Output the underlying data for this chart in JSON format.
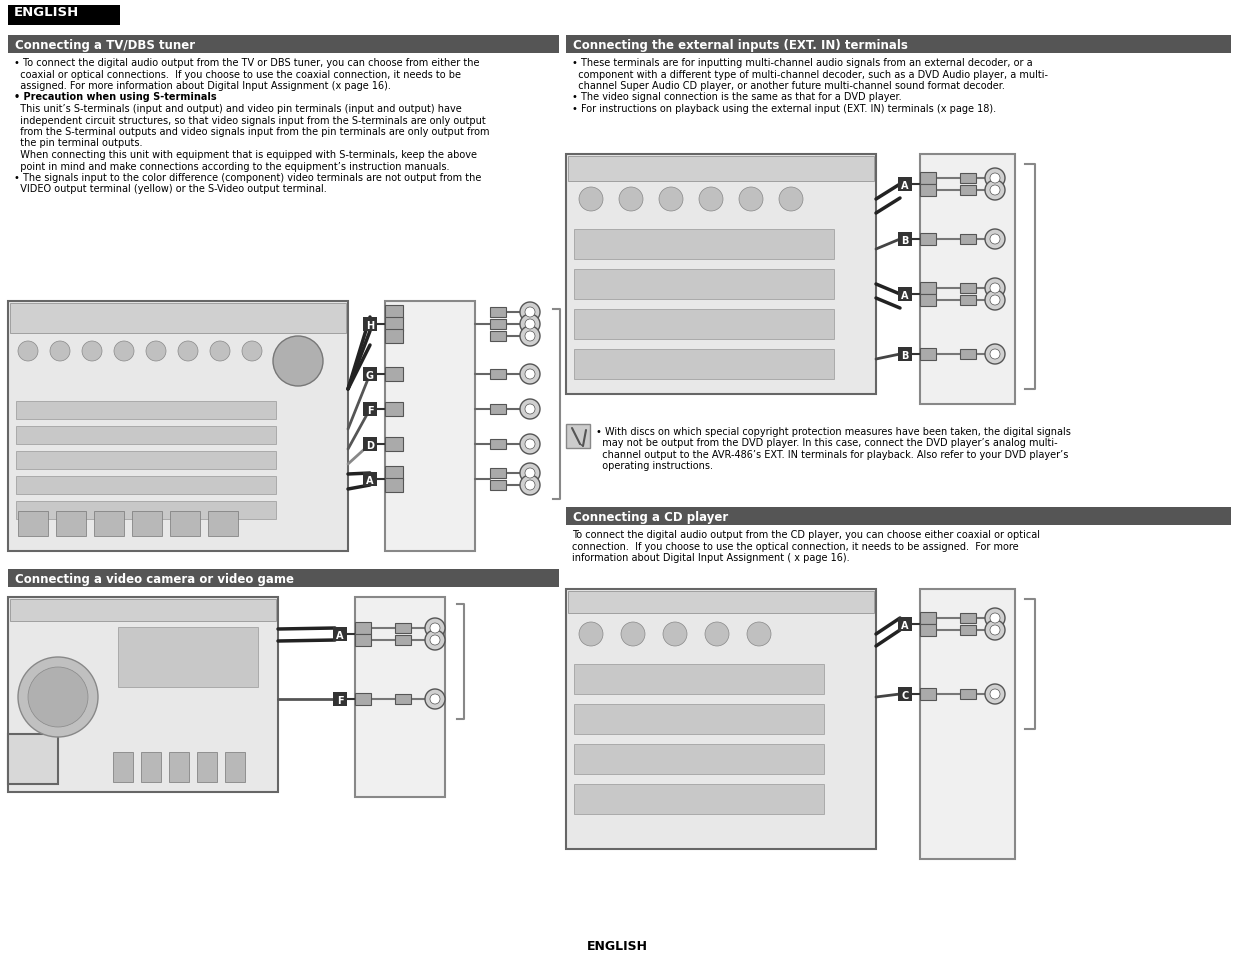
{
  "page_bg": "#ffffff",
  "header_bg": "#000000",
  "header_text": "ENGLISH",
  "header_text_color": "#ffffff",
  "section_header_bg": "#555555",
  "section_header_text_color": "#ffffff",
  "body_text_color": "#000000",
  "footer_text": "ENGLISH",
  "sec1_title": "Connecting a TV/DBS tuner",
  "sec1_body": [
    [
      "• To connect the digital audio output from the TV or DBS tuner, you can choose from either the",
      false
    ],
    [
      "  coaxial or optical connections.  If you choose to use the coaxial connection, it needs to be",
      false
    ],
    [
      "  assigned. For more information about Digital Input Assignment (ⅹ page 16).",
      false
    ],
    [
      "• Precaution when using S-terminals",
      true
    ],
    [
      "  This unit’s S-terminals (input and output) and video pin terminals (input and output) have",
      false
    ],
    [
      "  independent circuit structures, so that video signals input from the S-terminals are only output",
      false
    ],
    [
      "  from the S-terminal outputs and video signals input from the pin terminals are only output from",
      false
    ],
    [
      "  the pin terminal outputs.",
      false
    ],
    [
      "  When connecting this unit with equipment that is equipped with S-terminals, keep the above",
      false
    ],
    [
      "  point in mind and make connections according to the equipment’s instruction manuals.",
      false
    ],
    [
      "• The signals input to the color difference (component) video terminals are not output from the",
      false
    ],
    [
      "  VIDEO output terminal (yellow) or the S-Video output terminal.",
      false
    ]
  ],
  "sec2_title": "Connecting the external inputs (EXT. IN) terminals",
  "sec2_body": [
    "• These terminals are for inputting multi-channel audio signals from an external decoder, or a",
    "  component with a different type of multi-channel decoder, such as a DVD Audio player, a multi-",
    "  channel Super Audio CD player, or another future multi-channel sound format decoder.",
    "• The video signal connection is the same as that for a DVD player.",
    "• For instructions on playback using the external input (EXT. IN) terminals (ⅹ page 18)."
  ],
  "sec2_note": [
    "• With discs on which special copyright protection measures have been taken, the digital signals",
    "  may not be output from the DVD player. In this case, connect the DVD player’s analog multi-",
    "  channel output to the AVR-486’s EXT. IN terminals for playback. Also refer to your DVD player’s",
    "  operating instructions."
  ],
  "sec3_title": "Connecting a video camera or video game",
  "sec4_title": "Connecting a CD player",
  "sec4_body": [
    "To connect the digital audio output from the CD player, you can choose either coaxial or optical",
    "connection.  If you choose to use the optical connection, it needs to be assigned.  For more",
    "information about Digital Input Assignment ( ⅹ page 16)."
  ],
  "avr_color": "#b8b8b8",
  "avr_dark": "#888888",
  "avr_light": "#d8d8d8",
  "connector_gray": "#aaaaaa",
  "label_bg": "#333333",
  "label_fg": "#ffffff",
  "cable_black": "#111111",
  "cable_gray": "#888888",
  "circle_fg": "#cccccc",
  "circle_ec": "#555555"
}
